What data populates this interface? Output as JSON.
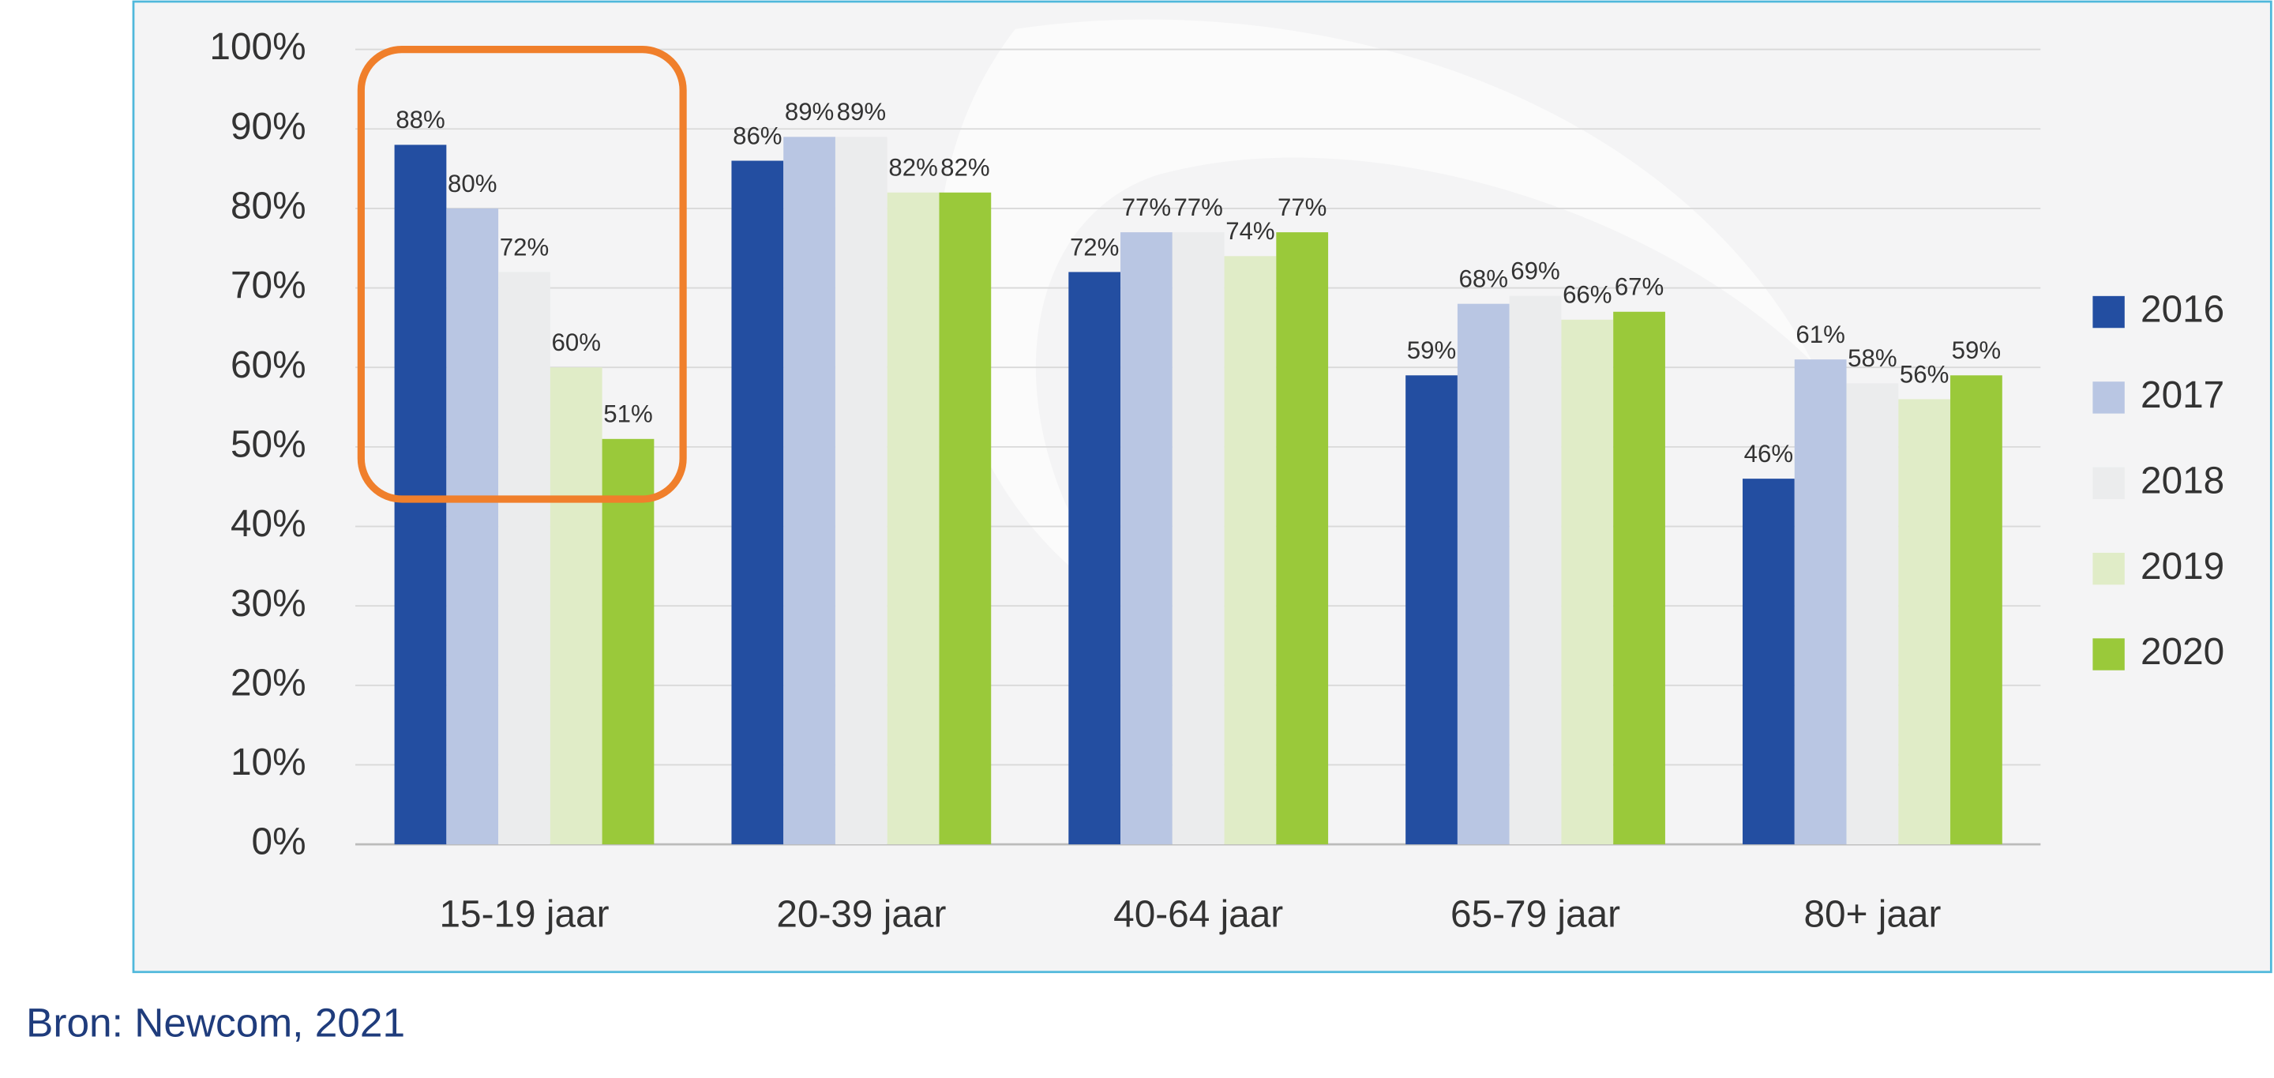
{
  "chart_data": {
    "type": "bar",
    "categories": [
      "15-19 jaar",
      "20-39 jaar",
      "40-64 jaar",
      "65-79 jaar",
      "80+ jaar"
    ],
    "series": [
      {
        "name": "2016",
        "color": "#234ea1",
        "values": [
          88,
          86,
          72,
          59,
          46
        ],
        "value_labels": [
          "88%",
          "86%",
          "72%",
          "59%",
          "46%"
        ]
      },
      {
        "name": "2017",
        "color": "#b9c6e3",
        "values": [
          80,
          89,
          77,
          68,
          61
        ],
        "value_labels": [
          "80%",
          "89%",
          "77%",
          "68%",
          "61%"
        ]
      },
      {
        "name": "2018",
        "color": "#ebeced",
        "values": [
          72,
          89,
          77,
          69,
          58
        ],
        "value_labels": [
          "72%",
          "89%",
          "77%",
          "69%",
          "58%"
        ]
      },
      {
        "name": "2019",
        "color": "#e0ecc7",
        "values": [
          60,
          82,
          74,
          66,
          56
        ],
        "value_labels": [
          "60%",
          "82%",
          "74%",
          "66%",
          "56%"
        ]
      },
      {
        "name": "2020",
        "color": "#9ac93a",
        "values": [
          51,
          82,
          77,
          67,
          59
        ],
        "value_labels": [
          "51%",
          "82%",
          "77%",
          "67%",
          "59%"
        ]
      }
    ],
    "ylim": [
      0,
      100
    ],
    "yticks": [
      {
        "value": 0,
        "label": "0%"
      },
      {
        "value": 10,
        "label": "10%"
      },
      {
        "value": 20,
        "label": "20%"
      },
      {
        "value": 30,
        "label": "30%"
      },
      {
        "value": 40,
        "label": "40%"
      },
      {
        "value": 50,
        "label": "50%"
      },
      {
        "value": 60,
        "label": "60%"
      },
      {
        "value": 70,
        "label": "70%"
      },
      {
        "value": 80,
        "label": "80%"
      },
      {
        "value": 90,
        "label": "90%"
      },
      {
        "value": 100,
        "label": "100%"
      }
    ],
    "grid": true,
    "legend": "right"
  },
  "source": "Bron: Newcom, 2021"
}
